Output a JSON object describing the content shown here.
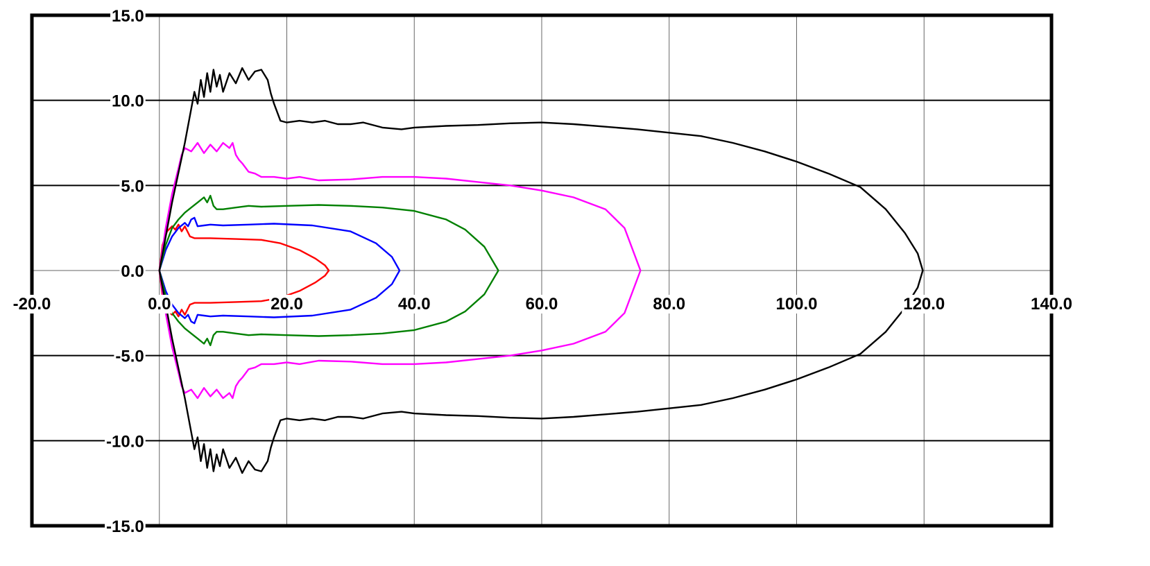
{
  "chart_data": {
    "type": "line",
    "title": "",
    "xlabel": "",
    "ylabel": "",
    "xlim": [
      -20,
      140
    ],
    "ylim": [
      -15,
      15
    ],
    "x_ticks": [
      -20,
      0,
      20,
      40,
      60,
      80,
      100,
      120,
      140
    ],
    "y_ticks": [
      -15,
      -10,
      -5,
      0,
      5,
      10,
      15
    ],
    "x_tick_labels": [
      "-20.0",
      "0.0",
      "20.0",
      "40.0",
      "60.0",
      "80.0",
      "100.0",
      "120.0",
      "140.0"
    ],
    "y_tick_labels": [
      "-15.0",
      "-10.0",
      "-5.0",
      "0.0",
      "5.0",
      "10.0",
      "15.0"
    ],
    "grid": true,
    "legend": "none",
    "series": [
      {
        "color": "#ff0000",
        "x": [
          0,
          0.5,
          1.2,
          2.0,
          2.5,
          3.0,
          3.5,
          4.0,
          4.8,
          5.5,
          8.0,
          12.0,
          16.0,
          19.0,
          22.0,
          24.5,
          26.0,
          26.6
        ],
        "y": [
          0,
          1.5,
          2.3,
          2.6,
          2.4,
          2.7,
          2.3,
          2.6,
          2.0,
          1.9,
          1.9,
          1.85,
          1.8,
          1.6,
          1.2,
          0.7,
          0.3,
          0
        ]
      },
      {
        "color": "#0000ff",
        "x": [
          0,
          1.0,
          2.0,
          3.0,
          4.0,
          4.5,
          5.0,
          5.5,
          6.0,
          7.0,
          8.0,
          10.0,
          14.0,
          18.0,
          24.0,
          30.0,
          34.0,
          36.5,
          37.7
        ],
        "y": [
          0,
          1.2,
          2.0,
          2.5,
          2.8,
          2.6,
          3.0,
          3.1,
          2.6,
          2.65,
          2.7,
          2.65,
          2.7,
          2.75,
          2.65,
          2.3,
          1.6,
          0.8,
          0
        ]
      },
      {
        "color": "#008000",
        "x": [
          0,
          1.0,
          2.0,
          3.0,
          4.0,
          5.0,
          6.0,
          7.0,
          7.5,
          8.0,
          8.5,
          9.0,
          10.0,
          12.0,
          14.0,
          16.0,
          20.0,
          25.0,
          30.0,
          35.0,
          40.0,
          45.0,
          48.0,
          51.0,
          53.2
        ],
        "y": [
          0,
          1.5,
          2.5,
          3.0,
          3.4,
          3.7,
          4.0,
          4.3,
          4.0,
          4.4,
          3.8,
          3.6,
          3.6,
          3.7,
          3.8,
          3.75,
          3.8,
          3.85,
          3.8,
          3.7,
          3.5,
          3.0,
          2.4,
          1.4,
          0
        ]
      },
      {
        "color": "#ff00ff",
        "x": [
          0,
          1.0,
          2.0,
          3.0,
          3.5,
          4.0,
          5.0,
          6.0,
          7.0,
          8.0,
          9.0,
          10.0,
          11.0,
          11.5,
          12.0,
          12.5,
          13.0,
          14.0,
          15.0,
          16.0,
          18.0,
          20.0,
          22.0,
          25.0,
          30.0,
          35.0,
          40.0,
          45.0,
          50.0,
          55.0,
          60.0,
          65.0,
          70.0,
          73.0,
          75.5
        ],
        "y": [
          0,
          2.5,
          4.5,
          6.0,
          6.8,
          7.2,
          7.0,
          7.5,
          6.9,
          7.4,
          7.0,
          7.5,
          7.2,
          7.5,
          6.8,
          6.5,
          6.3,
          5.8,
          5.7,
          5.5,
          5.5,
          5.4,
          5.5,
          5.3,
          5.35,
          5.5,
          5.5,
          5.4,
          5.2,
          5.0,
          4.7,
          4.3,
          3.6,
          2.5,
          0
        ]
      },
      {
        "color": "#000000",
        "x": [
          0,
          2.0,
          4.0,
          5.0,
          5.5,
          6.0,
          6.5,
          7.0,
          7.5,
          8.0,
          8.5,
          9.0,
          9.5,
          10.0,
          11.0,
          12.0,
          13.0,
          14.0,
          15.0,
          16.0,
          17.0,
          17.5,
          18.0,
          18.5,
          19.0,
          20.0,
          22.0,
          24.0,
          26.0,
          28.0,
          30.0,
          32.0,
          35.0,
          38.0,
          40.0,
          45.0,
          50.0,
          55.0,
          60.0,
          65.0,
          70.0,
          75.0,
          80.0,
          85.0,
          90.0,
          95.0,
          100.0,
          105.0,
          110.0,
          114.0,
          117.0,
          119.0,
          119.8
        ],
        "y": [
          0,
          4.0,
          7.5,
          9.5,
          10.5,
          9.8,
          11.2,
          10.2,
          11.6,
          10.5,
          11.8,
          10.8,
          11.5,
          10.5,
          11.6,
          11.0,
          11.9,
          11.2,
          11.7,
          11.8,
          11.2,
          10.4,
          9.8,
          9.3,
          8.8,
          8.7,
          8.8,
          8.7,
          8.8,
          8.6,
          8.6,
          8.7,
          8.4,
          8.3,
          8.4,
          8.5,
          8.55,
          8.65,
          8.7,
          8.6,
          8.45,
          8.3,
          8.1,
          7.9,
          7.5,
          7.0,
          6.4,
          5.7,
          4.9,
          3.6,
          2.2,
          1.0,
          0
        ]
      }
    ]
  }
}
